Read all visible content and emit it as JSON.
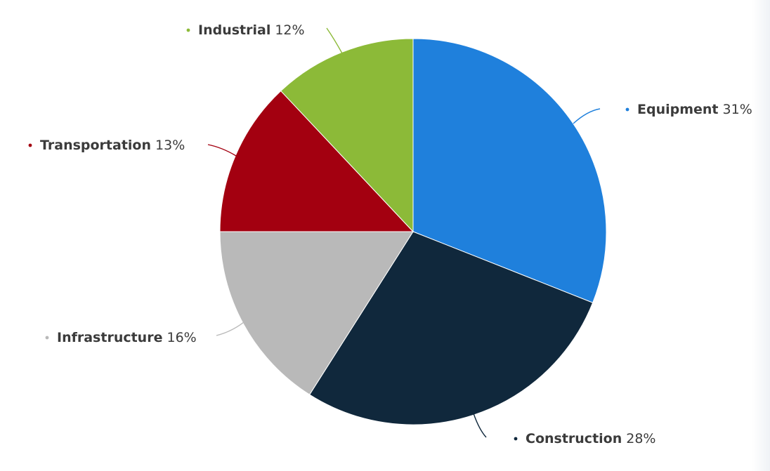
{
  "chart_data": {
    "type": "pie",
    "slices": [
      {
        "label": "Equipment",
        "value": 31,
        "value_label": "31%",
        "color": "#1f80dc"
      },
      {
        "label": "Construction",
        "value": 28,
        "value_label": "28%",
        "color": "#10283c"
      },
      {
        "label": "Infrastructure",
        "value": 16,
        "value_label": "16%",
        "color": "#b9b9b9"
      },
      {
        "label": "Transportation",
        "value": 13,
        "value_label": "13%",
        "color": "#a30010"
      },
      {
        "label": "Industrial",
        "value": 12,
        "value_label": "12%",
        "color": "#8cba38"
      }
    ],
    "start": "12 o'clock",
    "direction": "clockwise",
    "labels": "outside with connector lines"
  }
}
